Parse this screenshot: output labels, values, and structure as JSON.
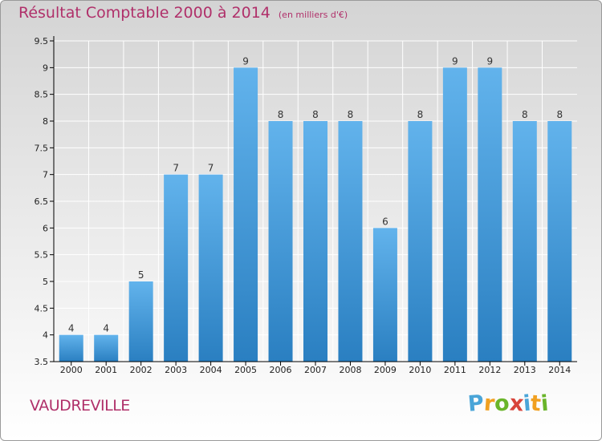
{
  "chart_data": {
    "type": "bar",
    "title": "Résultat Comptable 2000 à 2014",
    "subtitle": "(en milliers d'€)",
    "xlabel": "",
    "ylabel": "",
    "categories": [
      "2000",
      "2001",
      "2002",
      "2003",
      "2004",
      "2005",
      "2006",
      "2007",
      "2008",
      "2009",
      "2010",
      "2011",
      "2012",
      "2013",
      "2014"
    ],
    "values": [
      4,
      4,
      5,
      7,
      7,
      9,
      8,
      8,
      8,
      6,
      8,
      9,
      9,
      8,
      8
    ],
    "data_labels": [
      "4",
      "4",
      "5",
      "7",
      "7",
      "9",
      "8",
      "8",
      "8",
      "6",
      "8",
      "9",
      "9",
      "8",
      "8"
    ],
    "ylim": [
      3.5,
      9.5
    ],
    "yticks": [
      3.5,
      4,
      4.5,
      5,
      5.5,
      6,
      6.5,
      7,
      7.5,
      8,
      8.5,
      9,
      9.5
    ],
    "ytick_labels": [
      "3.5",
      "4",
      "4.5",
      "5",
      "5.5",
      "6",
      "6.5",
      "7",
      "7.5",
      "8",
      "8.5",
      "9",
      "9.5"
    ],
    "grid": true,
    "bar_color": "#2a7fc1",
    "bar_highlight": "#62b3ec"
  },
  "footer": {
    "commune": "VAUDREVILLE",
    "logo_letters": [
      "P",
      "r",
      "o",
      "x",
      "i",
      "t",
      "i"
    ],
    "logo_colors": [
      "#4aa5d8",
      "#f1a020",
      "#6ab52a",
      "#d8443a",
      "#4aa5d8",
      "#f1a020",
      "#6ab52a"
    ]
  },
  "colors": {
    "title": "#b0306a",
    "grid": "#ffffff",
    "axis": "#000000"
  }
}
